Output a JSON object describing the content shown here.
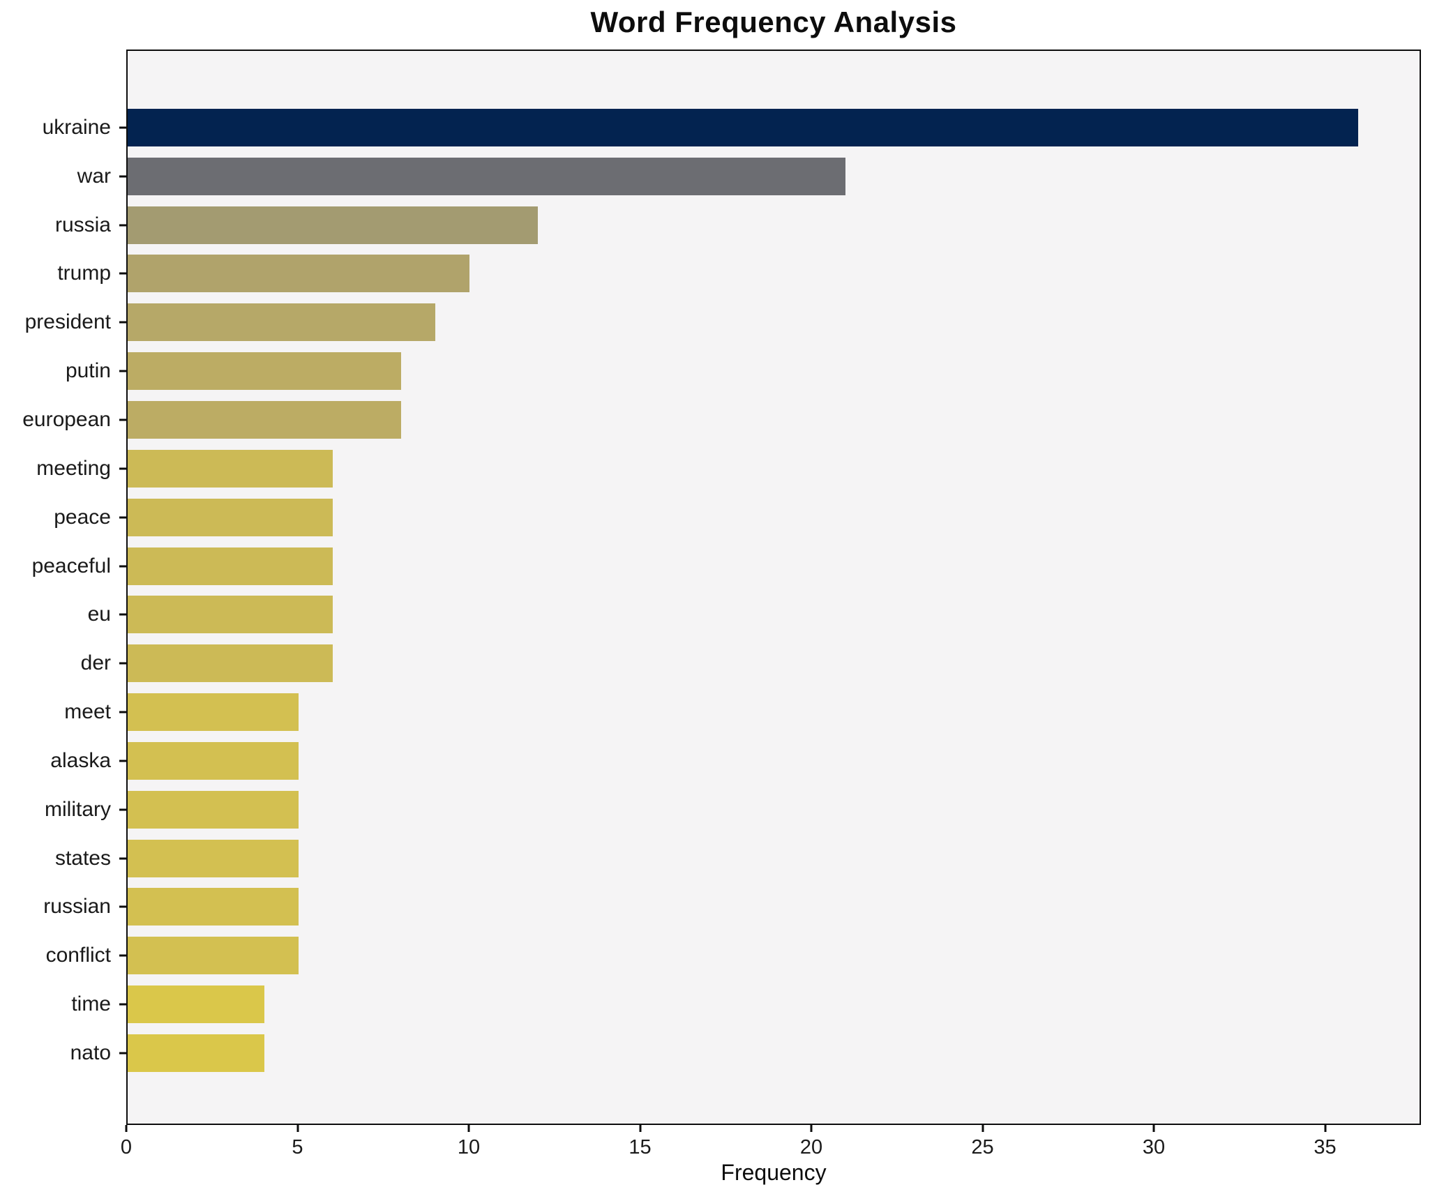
{
  "chart_data": {
    "type": "bar",
    "orientation": "horizontal",
    "title": "Word Frequency Analysis",
    "xlabel": "Frequency",
    "ylabel": "",
    "categories": [
      "ukraine",
      "war",
      "russia",
      "trump",
      "president",
      "putin",
      "european",
      "meeting",
      "peace",
      "peaceful",
      "eu",
      "der",
      "meet",
      "alaska",
      "military",
      "states",
      "russian",
      "conflict",
      "time",
      "nato"
    ],
    "values": [
      36,
      21,
      12,
      10,
      9,
      8,
      8,
      6,
      6,
      6,
      6,
      6,
      5,
      5,
      5,
      5,
      5,
      5,
      4,
      4
    ],
    "bar_colors": [
      "#032350",
      "#6c6d72",
      "#a39b71",
      "#b0a36b",
      "#b6a868",
      "#bcac64",
      "#bcac64",
      "#ccba56",
      "#ccba56",
      "#ccba56",
      "#ccba56",
      "#ccba56",
      "#d3c051",
      "#d3c051",
      "#d3c051",
      "#d3c051",
      "#d3c051",
      "#d3c051",
      "#dac74a",
      "#dac74a"
    ],
    "xlim": [
      0,
      37.8
    ],
    "xticks": [
      0,
      5,
      10,
      15,
      20,
      25,
      30,
      35
    ],
    "grid": false,
    "legend": null,
    "plot_background": "#f5f4f5",
    "figure_background": "#ffffff",
    "spine_color": "#0d0d0d"
  }
}
